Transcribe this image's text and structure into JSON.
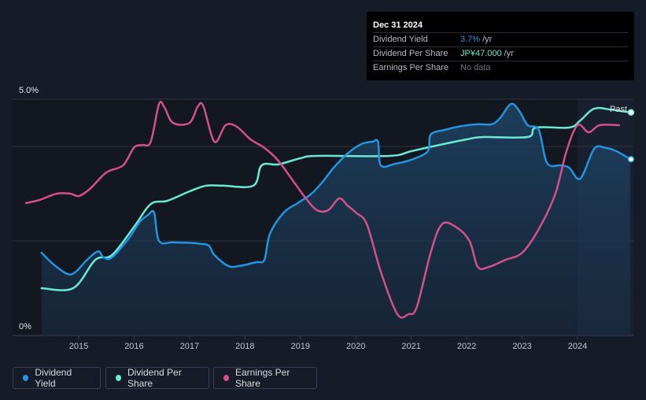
{
  "tooltip": {
    "date": "Dec 31 2024",
    "rows": [
      {
        "label": "Dividend Yield",
        "value": "3.7%",
        "unit": "/yr",
        "color": "#2394df"
      },
      {
        "label": "Dividend Per Share",
        "value": "JP¥47.000",
        "unit": "/yr",
        "color": "#6ce9d4"
      },
      {
        "label": "Earnings Per Share",
        "value": "No data",
        "unit": "",
        "color": "#6f747c"
      }
    ]
  },
  "legend": [
    {
      "label": "Dividend Yield",
      "color": "#2394df"
    },
    {
      "label": "Dividend Per Share",
      "color": "#6ce9d4"
    },
    {
      "label": "Earnings Per Share",
      "color": "#d2508c"
    }
  ],
  "chart_data": {
    "type": "line",
    "title": "",
    "xlabel": "",
    "ylabel": "",
    "ylim": [
      0,
      5
    ],
    "y_ticks": [
      {
        "value": 0,
        "label": "0%"
      },
      {
        "value": 5,
        "label": "5.0%"
      }
    ],
    "x_ticks": [
      "2015",
      "2016",
      "2017",
      "2018",
      "2019",
      "2020",
      "2021",
      "2022",
      "2023",
      "2024"
    ],
    "past_label": "Past",
    "past_start": 2024.0,
    "series": [
      {
        "name": "Dividend Yield",
        "color": "#2394df",
        "filled": true,
        "points": [
          [
            2014.33,
            1.75
          ],
          [
            2014.55,
            1.5
          ],
          [
            2014.8,
            1.3
          ],
          [
            2014.95,
            1.35
          ],
          [
            2015.15,
            1.6
          ],
          [
            2015.35,
            1.78
          ],
          [
            2015.45,
            1.65
          ],
          [
            2015.6,
            1.65
          ],
          [
            2015.9,
            2.05
          ],
          [
            2016.1,
            2.4
          ],
          [
            2016.25,
            2.55
          ],
          [
            2016.36,
            2.6
          ],
          [
            2016.45,
            2.0
          ],
          [
            2016.7,
            1.97
          ],
          [
            2017.0,
            1.96
          ],
          [
            2017.2,
            1.94
          ],
          [
            2017.35,
            1.9
          ],
          [
            2017.45,
            1.7
          ],
          [
            2017.7,
            1.47
          ],
          [
            2017.9,
            1.47
          ],
          [
            2018.2,
            1.55
          ],
          [
            2018.35,
            1.6
          ],
          [
            2018.45,
            2.15
          ],
          [
            2018.7,
            2.6
          ],
          [
            2018.95,
            2.8
          ],
          [
            2019.2,
            3.0
          ],
          [
            2019.4,
            3.25
          ],
          [
            2019.6,
            3.55
          ],
          [
            2019.85,
            3.85
          ],
          [
            2020.1,
            4.05
          ],
          [
            2020.3,
            4.1
          ],
          [
            2020.4,
            4.1
          ],
          [
            2020.45,
            3.6
          ],
          [
            2020.7,
            3.63
          ],
          [
            2021.0,
            3.72
          ],
          [
            2021.3,
            3.9
          ],
          [
            2021.35,
            4.25
          ],
          [
            2021.6,
            4.35
          ],
          [
            2021.9,
            4.43
          ],
          [
            2022.2,
            4.47
          ],
          [
            2022.45,
            4.47
          ],
          [
            2022.6,
            4.6
          ],
          [
            2022.8,
            4.9
          ],
          [
            2022.95,
            4.75
          ],
          [
            2023.1,
            4.45
          ],
          [
            2023.3,
            4.35
          ],
          [
            2023.45,
            3.65
          ],
          [
            2023.7,
            3.6
          ],
          [
            2023.85,
            3.55
          ],
          [
            2024.05,
            3.32
          ],
          [
            2024.3,
            3.95
          ],
          [
            2024.5,
            3.97
          ],
          [
            2024.7,
            3.9
          ],
          [
            2024.95,
            3.73
          ]
        ]
      },
      {
        "name": "Dividend Per Share",
        "color": "#6ce9d4",
        "filled": false,
        "points": [
          [
            2014.33,
            1.0
          ],
          [
            2014.9,
            1.0
          ],
          [
            2015.3,
            1.6
          ],
          [
            2015.6,
            1.7
          ],
          [
            2016.0,
            2.3
          ],
          [
            2016.3,
            2.78
          ],
          [
            2016.6,
            2.85
          ],
          [
            2017.0,
            3.05
          ],
          [
            2017.3,
            3.17
          ],
          [
            2017.6,
            3.17
          ],
          [
            2018.15,
            3.17
          ],
          [
            2018.3,
            3.6
          ],
          [
            2018.6,
            3.62
          ],
          [
            2019.0,
            3.75
          ],
          [
            2019.3,
            3.8
          ],
          [
            2020.6,
            3.8
          ],
          [
            2021.0,
            3.9
          ],
          [
            2021.5,
            4.03
          ],
          [
            2022.0,
            4.15
          ],
          [
            2022.3,
            4.2
          ],
          [
            2023.1,
            4.2
          ],
          [
            2023.25,
            4.4
          ],
          [
            2023.85,
            4.4
          ],
          [
            2024.05,
            4.55
          ],
          [
            2024.3,
            4.8
          ],
          [
            2024.6,
            4.78
          ],
          [
            2024.95,
            4.72
          ]
        ]
      },
      {
        "name": "Earnings Per Share",
        "color": "#d2508c",
        "filled": false,
        "points": [
          [
            2014.05,
            2.8
          ],
          [
            2014.3,
            2.87
          ],
          [
            2014.6,
            3.0
          ],
          [
            2014.85,
            3.0
          ],
          [
            2015.0,
            2.95
          ],
          [
            2015.2,
            3.1
          ],
          [
            2015.5,
            3.45
          ],
          [
            2015.8,
            3.6
          ],
          [
            2016.0,
            3.98
          ],
          [
            2016.15,
            4.03
          ],
          [
            2016.3,
            4.1
          ],
          [
            2016.45,
            4.9
          ],
          [
            2016.55,
            4.82
          ],
          [
            2016.7,
            4.5
          ],
          [
            2017.0,
            4.5
          ],
          [
            2017.15,
            4.85
          ],
          [
            2017.25,
            4.85
          ],
          [
            2017.45,
            4.1
          ],
          [
            2017.65,
            4.45
          ],
          [
            2017.85,
            4.42
          ],
          [
            2018.1,
            4.15
          ],
          [
            2018.35,
            3.97
          ],
          [
            2018.6,
            3.7
          ],
          [
            2018.85,
            3.3
          ],
          [
            2019.1,
            2.9
          ],
          [
            2019.3,
            2.65
          ],
          [
            2019.5,
            2.65
          ],
          [
            2019.7,
            2.9
          ],
          [
            2019.85,
            2.75
          ],
          [
            2020.0,
            2.6
          ],
          [
            2020.2,
            2.35
          ],
          [
            2020.45,
            1.35
          ],
          [
            2020.75,
            0.45
          ],
          [
            2020.95,
            0.45
          ],
          [
            2021.1,
            0.6
          ],
          [
            2021.35,
            1.75
          ],
          [
            2021.55,
            2.35
          ],
          [
            2021.8,
            2.3
          ],
          [
            2022.05,
            2.0
          ],
          [
            2022.2,
            1.45
          ],
          [
            2022.4,
            1.45
          ],
          [
            2022.7,
            1.6
          ],
          [
            2023.0,
            1.75
          ],
          [
            2023.3,
            2.25
          ],
          [
            2023.6,
            3.0
          ],
          [
            2023.8,
            3.9
          ],
          [
            2024.0,
            4.45
          ],
          [
            2024.2,
            4.3
          ],
          [
            2024.4,
            4.45
          ],
          [
            2024.75,
            4.45
          ]
        ]
      }
    ]
  }
}
